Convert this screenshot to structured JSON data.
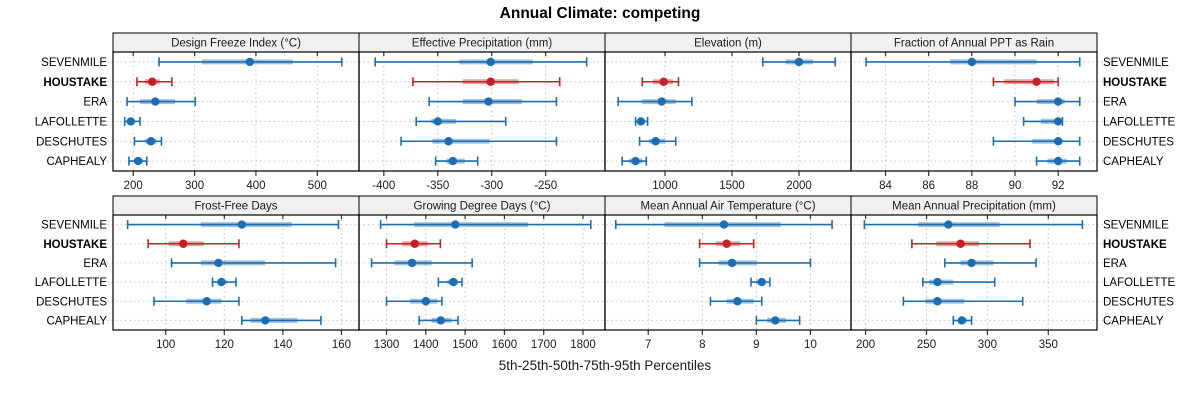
{
  "chart_data": {
    "type": "scatter",
    "subtype": "trellis-percentile-interval-dotplot",
    "title": "Annual Climate: competing",
    "footer": "5th-25th-50th-75th-95th Percentiles",
    "percentiles": [
      "5th",
      "25th",
      "50th",
      "75th",
      "95th"
    ],
    "stations": [
      "SEVENMILE",
      "HOUSTAKE",
      "ERA",
      "LAFOLLETTE",
      "DESCHUTES",
      "CAPHEALY"
    ],
    "highlighted_station": "HOUSTAKE",
    "legend_position": "none",
    "grid": "dotted",
    "colors": {
      "normal": "#1C6EB0",
      "highlight": "#C42127",
      "band_opacity": 0.42,
      "grid": "#c4c4c4",
      "strip_bg": "#F0F0F0",
      "panel_border": "#000000",
      "text": "#1a1a1a"
    },
    "panels": [
      {
        "title": "Design Freeze Index (°C)",
        "row": 0,
        "col": 0,
        "ticks": [
          200,
          300,
          400,
          500
        ],
        "xlim": [
          167,
          568
        ],
        "series": [
          {
            "name": "SEVENMILE",
            "values": [
              242,
              312,
              390,
              460,
              540
            ]
          },
          {
            "name": "HOUSTAKE",
            "values": [
              206,
              219,
              231,
              243,
              263
            ]
          },
          {
            "name": "ERA",
            "values": [
              190,
              211,
              236,
              268,
              301
            ]
          },
          {
            "name": "LAFOLLETTE",
            "values": [
              186,
              191,
              196,
              201,
              211
            ]
          },
          {
            "name": "DESCHUTES",
            "values": [
              202,
              219,
              229,
              238,
              246
            ]
          },
          {
            "name": "CAPHEALY",
            "values": [
              193,
              201,
              208,
              216,
              222
            ]
          }
        ]
      },
      {
        "title": "Effective Precipitation (mm)",
        "row": 0,
        "col": 1,
        "ticks": [
          -400,
          -350,
          -300,
          -250
        ],
        "xlim": [
          -423,
          -195
        ],
        "series": [
          {
            "name": "SEVENMILE",
            "values": [
              -408,
              -330,
              -301,
              -262,
              -212
            ]
          },
          {
            "name": "HOUSTAKE",
            "values": [
              -373,
              -327,
              -301,
              -275,
              -237
            ]
          },
          {
            "name": "ERA",
            "values": [
              -358,
              -327,
              -303,
              -272,
              -240
            ]
          },
          {
            "name": "LAFOLLETTE",
            "values": [
              -370,
              -356,
              -350,
              -333,
              -287
            ]
          },
          {
            "name": "DESCHUTES",
            "values": [
              -384,
              -355,
              -340,
              -302,
              -240
            ]
          },
          {
            "name": "CAPHEALY",
            "values": [
              -352,
              -342,
              -336,
              -325,
              -313
            ]
          }
        ]
      },
      {
        "title": "Elevation (m)",
        "row": 0,
        "col": 2,
        "ticks": [
          1000,
          1500,
          2000
        ],
        "xlim": [
          552,
          2388
        ],
        "series": [
          {
            "name": "SEVENMILE",
            "values": [
              1730,
              1900,
              2000,
              2105,
              2270
            ]
          },
          {
            "name": "HOUSTAKE",
            "values": [
              830,
              910,
              990,
              1060,
              1100
            ]
          },
          {
            "name": "ERA",
            "values": [
              650,
              830,
              975,
              1080,
              1200
            ]
          },
          {
            "name": "LAFOLLETTE",
            "values": [
              780,
              800,
              820,
              845,
              870
            ]
          },
          {
            "name": "DESCHUTES",
            "values": [
              810,
              880,
              930,
              1000,
              1080
            ]
          },
          {
            "name": "CAPHEALY",
            "values": [
              680,
              730,
              780,
              830,
              860
            ]
          }
        ]
      },
      {
        "title": "Fraction of Annual PPT as Rain",
        "row": 0,
        "col": 3,
        "ticks": [
          84,
          86,
          88,
          90,
          92
        ],
        "xlim": [
          82.4,
          93.8
        ],
        "series": [
          {
            "name": "SEVENMILE",
            "values": [
              83.1,
              87.0,
              88.0,
              91.0,
              93.0
            ]
          },
          {
            "name": "HOUSTAKE",
            "values": [
              89.0,
              89.5,
              91.0,
              91.8,
              92.0
            ]
          },
          {
            "name": "ERA",
            "values": [
              90.0,
              91.0,
              92.0,
              92.3,
              93.0
            ]
          },
          {
            "name": "LAFOLLETTE",
            "values": [
              90.4,
              91.2,
              92.0,
              92.1,
              92.2
            ]
          },
          {
            "name": "DESCHUTES",
            "values": [
              89.0,
              90.8,
              92.0,
              92.2,
              93.0
            ]
          },
          {
            "name": "CAPHEALY",
            "values": [
              91.0,
              91.5,
              92.0,
              92.4,
              93.0
            ]
          }
        ]
      },
      {
        "title": "Frost-Free Days",
        "row": 1,
        "col": 0,
        "ticks": [
          100,
          120,
          140,
          160
        ],
        "xlim": [
          82,
          166
        ],
        "series": [
          {
            "name": "SEVENMILE",
            "values": [
              87,
              112,
              126,
              143,
              159
            ]
          },
          {
            "name": "HOUSTAKE",
            "values": [
              94,
              101,
              106,
              113,
              125
            ]
          },
          {
            "name": "ERA",
            "values": [
              102,
              112,
              118,
              134,
              158
            ]
          },
          {
            "name": "LAFOLLETTE",
            "values": [
              116,
              118,
              119,
              121,
              124
            ]
          },
          {
            "name": "DESCHUTES",
            "values": [
              96,
              107,
              114,
              119,
              125
            ]
          },
          {
            "name": "CAPHEALY",
            "values": [
              126,
              129,
              134,
              145,
              153
            ]
          }
        ]
      },
      {
        "title": "Growing Degree Days (°C)",
        "row": 1,
        "col": 1,
        "ticks": [
          1300,
          1400,
          1500,
          1600,
          1700,
          1800
        ],
        "xlim": [
          1230,
          1856
        ],
        "series": [
          {
            "name": "SEVENMILE",
            "values": [
              1285,
              1370,
              1475,
              1660,
              1820
            ]
          },
          {
            "name": "HOUSTAKE",
            "values": [
              1300,
              1340,
              1372,
              1405,
              1437
            ]
          },
          {
            "name": "ERA",
            "values": [
              1262,
              1320,
              1365,
              1415,
              1518
            ]
          },
          {
            "name": "LAFOLLETTE",
            "values": [
              1432,
              1455,
              1470,
              1482,
              1492
            ]
          },
          {
            "name": "DESCHUTES",
            "values": [
              1300,
              1360,
              1400,
              1430,
              1441
            ]
          },
          {
            "name": "CAPHEALY",
            "values": [
              1383,
              1415,
              1438,
              1465,
              1482
            ]
          }
        ]
      },
      {
        "title": "Mean Annual Air Temperature (°C)",
        "row": 1,
        "col": 2,
        "ticks": [
          7,
          8,
          9,
          10
        ],
        "xlim": [
          6.2,
          10.75
        ],
        "series": [
          {
            "name": "SEVENMILE",
            "values": [
              6.4,
              7.3,
              8.4,
              9.45,
              10.4
            ]
          },
          {
            "name": "HOUSTAKE",
            "values": [
              7.95,
              8.25,
              8.45,
              8.7,
              8.95
            ]
          },
          {
            "name": "ERA",
            "values": [
              7.95,
              8.3,
              8.55,
              9.0,
              10.0
            ]
          },
          {
            "name": "LAFOLLETTE",
            "values": [
              8.9,
              9.0,
              9.1,
              9.15,
              9.25
            ]
          },
          {
            "name": "DESCHUTES",
            "values": [
              8.15,
              8.45,
              8.65,
              8.95,
              9.1
            ]
          },
          {
            "name": "CAPHEALY",
            "values": [
              9.0,
              9.2,
              9.35,
              9.55,
              9.8
            ]
          }
        ]
      },
      {
        "title": "Mean Annual Precipitation (mm)",
        "row": 1,
        "col": 3,
        "ticks": [
          200,
          250,
          300,
          350
        ],
        "xlim": [
          188,
          390
        ],
        "series": [
          {
            "name": "SEVENMILE",
            "values": [
              199,
              243,
              268,
              310,
              378
            ]
          },
          {
            "name": "HOUSTAKE",
            "values": [
              238,
              258,
              278,
              293,
              335
            ]
          },
          {
            "name": "ERA",
            "values": [
              265,
              278,
              287,
              305,
              340
            ]
          },
          {
            "name": "LAFOLLETTE",
            "values": [
              247,
              252,
              259,
              272,
              306
            ]
          },
          {
            "name": "DESCHUTES",
            "values": [
              231,
              249,
              259,
              281,
              329
            ]
          },
          {
            "name": "CAPHEALY",
            "values": [
              272,
              276,
              279,
              283,
              287
            ]
          }
        ]
      }
    ]
  }
}
